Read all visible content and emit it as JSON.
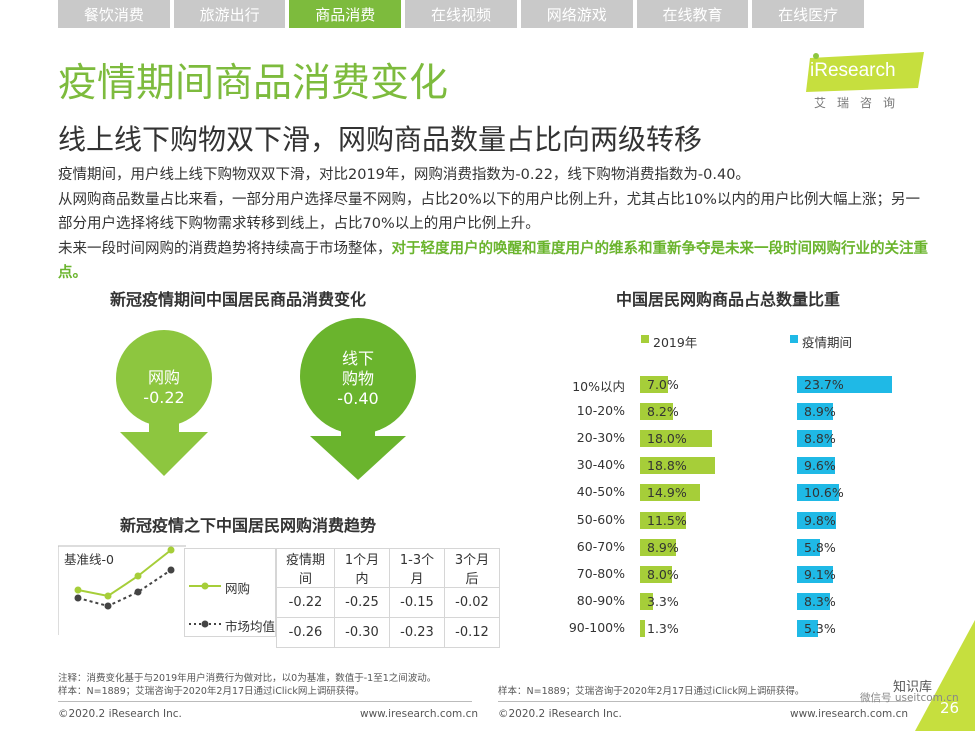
{
  "tabs": [
    {
      "label": "餐饮消费",
      "active": false
    },
    {
      "label": "旅游出行",
      "active": false
    },
    {
      "label": "商品消费",
      "active": true
    },
    {
      "label": "在线视频",
      "active": false
    },
    {
      "label": "网络游戏",
      "active": false
    },
    {
      "label": "在线教育",
      "active": false
    },
    {
      "label": "在线医疗",
      "active": false
    }
  ],
  "header": {
    "title": "疫情期间商品消费变化",
    "subtitle": "线上线下购物双下滑，网购商品数量占比向两级转移"
  },
  "logo": {
    "text": "iResearch",
    "cn": "艾瑞咨询"
  },
  "body": {
    "p1": "疫情期间，用户线上线下购物双双下滑，对比2019年，网购消费指数为-0.22，线下购物消费指数为-0.40。",
    "p2": "从网购商品数量占比来看，一部分用户选择尽量不网购，占比20%以下的用户比例上升，尤其占比10%以内的用户比例大幅上涨；另一部分用户选择将线下购物需求转移到线上，占比70%以上的用户比例上升。",
    "p3_plain": "未来一段时间网购的消费趋势将持续高于市场整体，",
    "p3_highlight": "对于轻度用户的唤醒和重度用户的维系和重新争夺是未来一段时间网购行业的关注重点。"
  },
  "left_chart": {
    "title": "新冠疫情期间中国居民商品消费变化",
    "online_label": "网购",
    "online_value": "-0.22",
    "offline_label_1": "线下",
    "offline_label_2": "购物",
    "offline_value": "-0.40",
    "online_color": "#8dc63f",
    "offline_color": "#6ab42d"
  },
  "trend": {
    "title": "新冠疫情之下中国居民网购消费趋势",
    "baseline_label": "基准线-0",
    "headers": [
      "疫情期间",
      "1个月内",
      "1-3个月",
      "3个月后"
    ],
    "rows": [
      {
        "name": "网购",
        "values": [
          "-0.22",
          "-0.25",
          "-0.15",
          "-0.02"
        ],
        "color": "#a6ce39"
      },
      {
        "name": "市场均值",
        "values": [
          "-0.26",
          "-0.30",
          "-0.23",
          "-0.12"
        ],
        "color": "#444444"
      }
    ]
  },
  "chart_data": {
    "type": "bar",
    "orientation": "horizontal",
    "title": "中国居民网购商品占总数量比重",
    "categories": [
      "10%以内",
      "10-20%",
      "20-30%",
      "30-40%",
      "40-50%",
      "50-60%",
      "60-70%",
      "70-80%",
      "80-90%",
      "90-100%"
    ],
    "series": [
      {
        "name": "2019年",
        "color": "#a6ce39",
        "values": [
          7.0,
          8.2,
          18.0,
          18.8,
          14.9,
          11.5,
          8.9,
          8.0,
          3.3,
          1.3
        ],
        "labels": [
          "7.0%",
          "8.2%",
          "18.0%",
          "18.8%",
          "14.9%",
          "11.5%",
          "8.9%",
          "8.0%",
          "3.3%",
          "1.3%"
        ]
      },
      {
        "name": "疫情期间",
        "color": "#1fb9e6",
        "values": [
          23.7,
          8.9,
          8.8,
          9.6,
          10.6,
          9.8,
          5.8,
          9.1,
          8.3,
          5.3
        ],
        "labels": [
          "23.7%",
          "8.9%",
          "8.8%",
          "9.6%",
          "10.6%",
          "9.8%",
          "5.8%",
          "9.1%",
          "8.3%",
          "5.3%"
        ]
      }
    ],
    "legend": "top"
  },
  "footer": {
    "note_left_1": "注释：消费变化基于与2019年用户消费行为做对比，以0为基准，数值于-1至1之间波动。",
    "note_left_2": "样本：N=1889；艾瑞咨询于2020年2月17日通过iClick网上调研获得。",
    "note_right": "样本：N=1889；艾瑞咨询于2020年2月17日通过iClick网上调研获得。",
    "copyright": "©2020.2 iResearch Inc.",
    "website": "www.iresearch.com.cn",
    "watermark_1": "知识库",
    "watermark_2": "微信号 useitcom.cn",
    "page_number": "26"
  }
}
